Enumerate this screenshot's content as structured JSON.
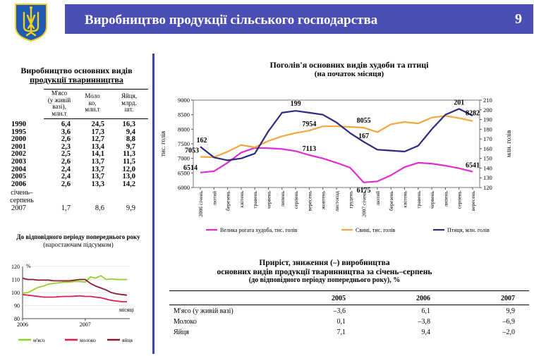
{
  "header": {
    "title": "Виробництво продукції сільського господарства",
    "page_number": "9"
  },
  "colors": {
    "header_bg": "#4b4fb5",
    "divider": "#3b47a8",
    "emblem_bg": "#1f5bb4",
    "emblem_fg": "#f3d21f"
  },
  "left_table": {
    "title_line1": "Виробництво основних видів",
    "title_line2": "продукції тваринництва",
    "columns": [
      {
        "line1": "М'ясо",
        "line2": "(у живій",
        "line3": "вазі),",
        "line4": "млн.т"
      },
      {
        "line1": "Моло",
        "line2": "ко,",
        "line3": "млн.т",
        "line4": ""
      },
      {
        "line1": "Яйця,",
        "line2": "млрд.",
        "line3": "шт.",
        "line4": ""
      }
    ],
    "rows": [
      {
        "label": "1990",
        "meat": "6,4",
        "milk": "24,5",
        "eggs": "16,3"
      },
      {
        "label": "1995",
        "meat": "3,6",
        "milk": "17,3",
        "eggs": "9,4"
      },
      {
        "label": "2000",
        "meat": "2,6",
        "milk": "12,7",
        "eggs": "8,8"
      },
      {
        "label": "2001",
        "meat": "2,3",
        "milk": "13,4",
        "eggs": "9,7"
      },
      {
        "label": "2002",
        "meat": "2,5",
        "milk": "14,1",
        "eggs": "11,3"
      },
      {
        "label": "2003",
        "meat": "2,6",
        "milk": "13,7",
        "eggs": "11,5"
      },
      {
        "label": "2004",
        "meat": "2,4",
        "milk": "13,7",
        "eggs": "12,0"
      },
      {
        "label": "2005",
        "meat": "2,4",
        "milk": "13,7",
        "eggs": "13,0"
      },
      {
        "label": "2006",
        "meat": "2,6",
        "milk": "13,3",
        "eggs": "14,2"
      }
    ],
    "period_label_line1": "січень–",
    "period_label_line2": "серпень",
    "period_row": {
      "label": "2007",
      "meat": "1,7",
      "milk": "8,6",
      "eggs": "9,9"
    }
  },
  "growth_table": {
    "title_line1": "Приріст, зниження (–) виробництва",
    "title_line2": "основних видів продукції тваринництва за січень–серпень",
    "title_line3": "(до відповідного періоду попереднього року), %",
    "years": [
      "2005",
      "2006",
      "2007"
    ],
    "rows": [
      {
        "label": "М'ясо (у живій вазі)",
        "values": [
          "–3,6",
          "6,1",
          "9,9"
        ]
      },
      {
        "label": "Молоко",
        "values": [
          "0,1",
          "–3,8",
          "–6,9"
        ]
      },
      {
        "label": "Яйця",
        "values": [
          "7,1",
          "9,4",
          "–2,0"
        ]
      }
    ]
  },
  "chart_data": [
    {
      "type": "line",
      "title": "Поголів'я основних видів худоби та птиці",
      "subtitle": "(на початок місяця)",
      "ylabel_left": "тис. голів",
      "ylabel_right": "млн. голів",
      "ylim_left": [
        6000,
        9000
      ],
      "ylim_right": [
        120,
        210
      ],
      "yticks_left": [
        "6000",
        "6500",
        "7000",
        "7500",
        "8000",
        "8500",
        "9000"
      ],
      "yticks_right": [
        "120",
        "130",
        "140",
        "150",
        "160",
        "170",
        "180",
        "190",
        "200",
        "210"
      ],
      "categories": [
        "2006 січень",
        "лютий",
        "березень",
        "квітень",
        "травень",
        "червень",
        "липень",
        "серпень",
        "вересень",
        "жовтень",
        "листопад",
        "грудень",
        "2007 січень",
        "лютий",
        "березень",
        "квітень",
        "травень",
        "червень",
        "липень",
        "серпень",
        "вересень"
      ],
      "series": [
        {
          "name": "Велика рогата худоба, тис. голів",
          "axis": "left",
          "color": "#e02cd3",
          "values": [
            6514,
            6560,
            6850,
            7200,
            7360,
            7350,
            7320,
            7250,
            7113,
            7000,
            6850,
            6680,
            6175,
            6210,
            6420,
            6700,
            6850,
            6820,
            6750,
            6660,
            6541
          ]
        },
        {
          "name": "Свині, тис. голів",
          "axis": "left",
          "color": "#f4a63d",
          "values": [
            7053,
            7040,
            7230,
            7460,
            7380,
            7600,
            7760,
            7870,
            7954,
            8100,
            8100,
            8080,
            8055,
            7900,
            8170,
            8250,
            8200,
            8400,
            8460,
            8380,
            8282
          ]
        },
        {
          "name": "Птиця, млн. голів",
          "axis": "right",
          "color": "#2b2a7e",
          "values": [
            162,
            151,
            148,
            150,
            155,
            178,
            197,
            199,
            197,
            195,
            187,
            176,
            167,
            159,
            158,
            157,
            163,
            180,
            195,
            201,
            194
          ]
        }
      ],
      "data_labels": [
        {
          "series": 0,
          "index": 0,
          "text": "6514"
        },
        {
          "series": 0,
          "index": 8,
          "text": "7113"
        },
        {
          "series": 0,
          "index": 12,
          "text": "6175"
        },
        {
          "series": 0,
          "index": 20,
          "text": "6541"
        },
        {
          "series": 1,
          "index": 0,
          "text": "7053"
        },
        {
          "series": 1,
          "index": 8,
          "text": "7954"
        },
        {
          "series": 1,
          "index": 12,
          "text": "8055"
        },
        {
          "series": 1,
          "index": 20,
          "text": "8282"
        },
        {
          "series": 2,
          "index": 0,
          "text": "162"
        },
        {
          "series": 2,
          "index": 7,
          "text": "199"
        },
        {
          "series": 2,
          "index": 12,
          "text": "167"
        },
        {
          "series": 2,
          "index": 19,
          "text": "201"
        }
      ]
    },
    {
      "type": "line",
      "title": "До відповідного періоду попереднього року",
      "subtitle": "(наростаючим підсумком)",
      "ylabel": "%",
      "xlabel": "місяці",
      "ylim": [
        80,
        120
      ],
      "yticks": [
        "80",
        "90",
        "100",
        "110",
        "120"
      ],
      "xticks": [
        {
          "index": 0,
          "label": "2006"
        },
        {
          "index": 12,
          "label": "2007"
        }
      ],
      "series": [
        {
          "name": "м'ясо",
          "color": "#8fd12a",
          "values": [
            99.5,
            100,
            102,
            104,
            105,
            106.5,
            107,
            107.5,
            108,
            108,
            108.5,
            108.5,
            108,
            112,
            111,
            113,
            110,
            110.5,
            110,
            110,
            110
          ]
        },
        {
          "name": "молоко",
          "color": "#e31c4b",
          "values": [
            98.5,
            98,
            97.5,
            97,
            96.5,
            96.5,
            96.5,
            96.8,
            97,
            97,
            97.2,
            97.5,
            97,
            97,
            96.5,
            96,
            95,
            94,
            93.5,
            93,
            93
          ]
        },
        {
          "name": "яйця",
          "color": "#8b1a2c",
          "values": [
            111,
            110,
            110,
            109.5,
            109.5,
            109.5,
            109,
            109,
            109,
            109,
            109.5,
            110,
            110,
            107,
            105,
            103.5,
            102,
            100,
            99,
            98.5,
            98
          ]
        }
      ]
    }
  ]
}
